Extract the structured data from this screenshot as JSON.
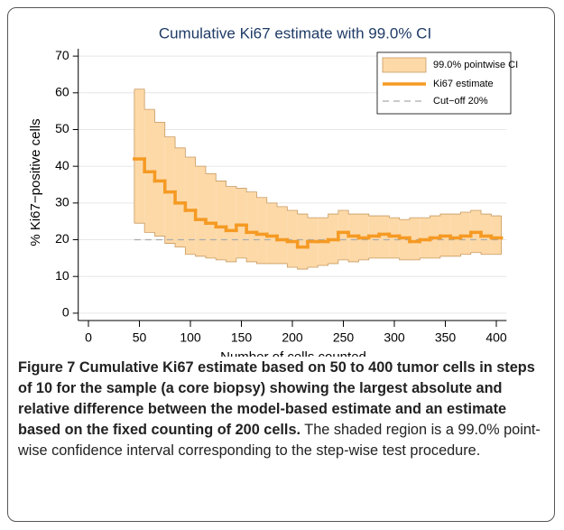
{
  "chart_data": {
    "type": "step-ci",
    "title": "Cumulative Ki67 estimate with 99.0% CI",
    "xlabel": "Number of cells counted",
    "ylabel": "% Ki67−positive cells",
    "x": [
      50,
      60,
      70,
      80,
      90,
      100,
      110,
      120,
      130,
      140,
      150,
      160,
      170,
      180,
      190,
      200,
      210,
      220,
      230,
      240,
      250,
      260,
      270,
      280,
      290,
      300,
      310,
      320,
      330,
      340,
      350,
      360,
      370,
      380,
      390,
      400
    ],
    "series": [
      {
        "name": "Ki67 estimate",
        "color": "#f59a23",
        "values": [
          42,
          38.5,
          36,
          33,
          30,
          28,
          25.5,
          24.5,
          23.5,
          22.5,
          24,
          22,
          21.5,
          21,
          20,
          19.5,
          18,
          19.5,
          19.5,
          20,
          22,
          21,
          20.5,
          21,
          21.5,
          21,
          20.5,
          19.5,
          20,
          20.5,
          21,
          20.5,
          21,
          22,
          21,
          20.5
        ]
      }
    ],
    "band": {
      "name": "99.0% pointwise CI",
      "color": "#fdd9a8",
      "lower": [
        24.5,
        22,
        21,
        19,
        18,
        16,
        15.5,
        15,
        14.5,
        14,
        15,
        14,
        13.5,
        13.5,
        13.5,
        12.5,
        12,
        12.5,
        13,
        13.5,
        14.5,
        14,
        14.5,
        15,
        15,
        15,
        14.5,
        14.5,
        15,
        15,
        15.5,
        15.5,
        16,
        16.5,
        16,
        16
      ],
      "upper": [
        61,
        55.5,
        52,
        48,
        45,
        42.5,
        40,
        38,
        36,
        34.5,
        34,
        33,
        31.5,
        30,
        29,
        28,
        27,
        26,
        26,
        27,
        28,
        27,
        27,
        26.5,
        26.5,
        26,
        25.5,
        26,
        26,
        26.5,
        27,
        27,
        27.5,
        28,
        27,
        26.5
      ]
    },
    "reference_line": {
      "name": "Cut−off 20%",
      "value": 20,
      "color": "#aaaaaa"
    },
    "xlim": [
      -10,
      410
    ],
    "xticks": [
      0,
      50,
      100,
      150,
      200,
      250,
      300,
      350,
      400
    ],
    "ylim": [
      -2,
      72
    ],
    "yticks": [
      0,
      10,
      20,
      30,
      40,
      50,
      60,
      70
    ],
    "grid": true,
    "legend": "top-right"
  },
  "caption": {
    "label": "Figure 7",
    "bold": "Cumulative Ki67 estimate based on 50 to 400 tumor cells in steps of 10 for the sample (a core biopsy) showing the largest absolute and relative difference between the model-based estimate and an estimate based on the fixed counting of 200 cells.",
    "text": "The shaded region is a 99.0% point-wise confidence interval corresponding to the step-wise test procedure."
  }
}
